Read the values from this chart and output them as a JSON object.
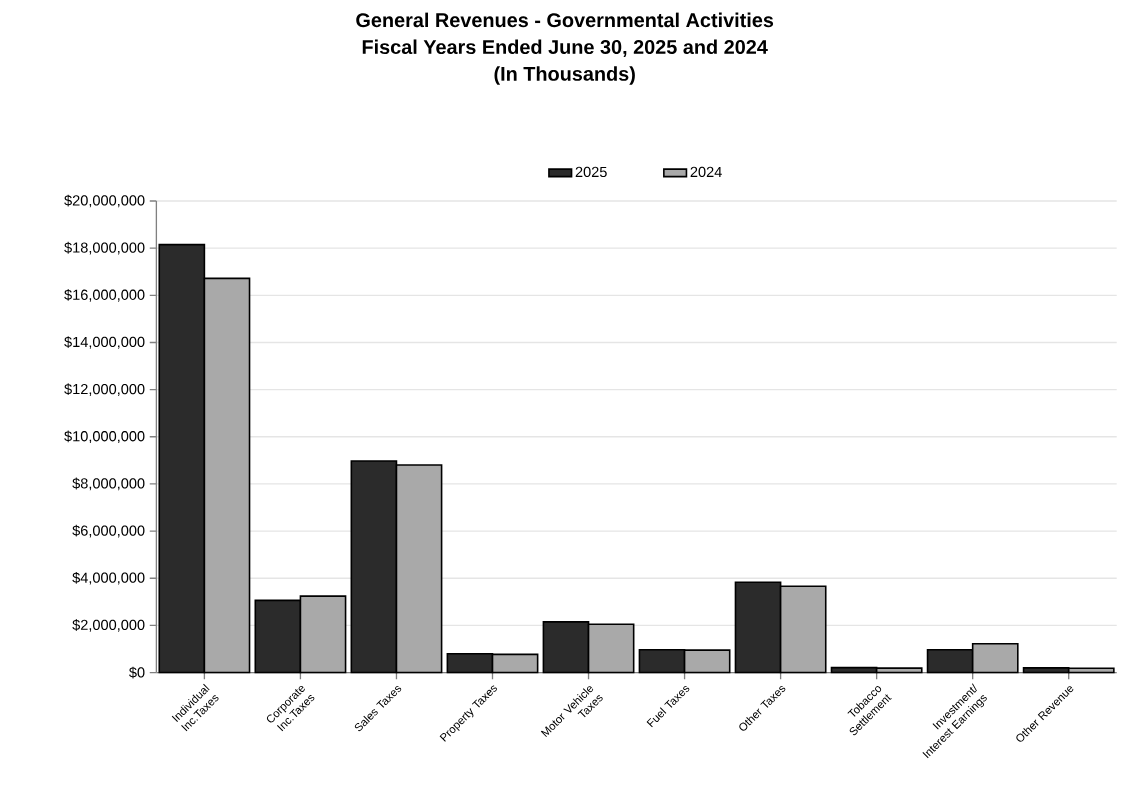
{
  "chart_data": {
    "type": "bar",
    "title": "General Revenues - Governmental Activities",
    "subtitle": "Fiscal Years Ended June 30, 2025 and 2024",
    "annotations": [
      "(In Thousands)"
    ],
    "categories": [
      "Individual Inc.Taxes",
      "Corporate Inc.Taxes",
      "Sales Taxes",
      "Property Taxes",
      "Motor Vehicle Taxes",
      "Fuel Taxes",
      "Other Taxes",
      "Tobacco Settlement",
      "Investment/ Interest Earnings",
      "Other Revenue"
    ],
    "series": [
      {
        "name": "2025",
        "color": "#2b2b2b",
        "values": [
          18150000,
          3060000,
          8970000,
          800000,
          2150000,
          970000,
          3830000,
          210000,
          970000,
          200000
        ]
      },
      {
        "name": "2024",
        "color": "#a9a9a9",
        "values": [
          16720000,
          3240000,
          8800000,
          770000,
          2050000,
          950000,
          3660000,
          190000,
          1220000,
          180000
        ]
      }
    ],
    "ylim": [
      0,
      20000000
    ],
    "yticks": [
      {
        "value": 0,
        "label": "$0"
      },
      {
        "value": 2000000,
        "label": "$2,000,000"
      },
      {
        "value": 4000000,
        "label": "$4,000,000"
      },
      {
        "value": 6000000,
        "label": "$6,000,000"
      },
      {
        "value": 8000000,
        "label": "$8,000,000"
      },
      {
        "value": 10000000,
        "label": "$10,000,000"
      },
      {
        "value": 12000000,
        "label": "$12,000,000"
      },
      {
        "value": 14000000,
        "label": "$14,000,000"
      },
      {
        "value": 16000000,
        "label": "$16,000,000"
      },
      {
        "value": 18000000,
        "label": "$18,000,000"
      },
      {
        "value": 20000000,
        "label": "$20,000,000"
      }
    ],
    "grid": "y",
    "legend": "top"
  }
}
